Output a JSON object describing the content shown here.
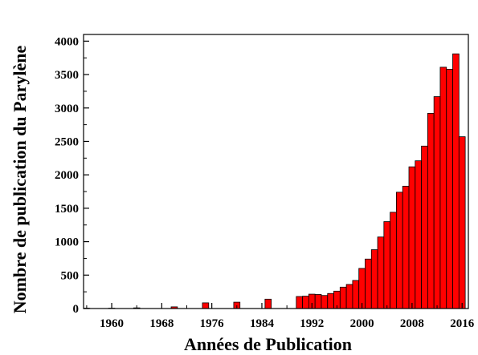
{
  "chart_data": {
    "type": "bar",
    "title": "",
    "xlabel": "Années de Publication",
    "ylabel": "Nombre de publication du Parylène",
    "xlim": [
      1955.5,
      2017
    ],
    "ylim": [
      0,
      4100
    ],
    "x_ticks": [
      1960,
      1968,
      1976,
      1984,
      1992,
      2000,
      2008,
      2016
    ],
    "y_ticks": [
      0,
      500,
      1000,
      1500,
      2000,
      2500,
      3000,
      3500,
      4000
    ],
    "x_tick_labels": [
      "1960",
      "1968",
      "1976",
      "1984",
      "1992",
      "2000",
      "2008",
      "2016"
    ],
    "y_tick_labels": [
      "0",
      "500",
      "1000",
      "1500",
      "2000",
      "2500",
      "3000",
      "3500",
      "4000"
    ],
    "grid": false,
    "bar_color": "#ff0000",
    "bar_edge_color": "#000000",
    "series": [
      {
        "x": [
          1956,
          1960,
          1964,
          1970,
          1975,
          1980,
          1985,
          1990,
          1991,
          1992,
          1993,
          1994,
          1995,
          1996,
          1997,
          1998,
          1999,
          2000,
          2001,
          2002,
          2003,
          2004,
          2005,
          2006,
          2007,
          2008,
          2009,
          2010,
          2011,
          2012,
          2013,
          2014,
          2015,
          2016
        ],
        "values": [
          5,
          5,
          10,
          25,
          85,
          95,
          140,
          180,
          185,
          215,
          210,
          195,
          225,
          260,
          320,
          360,
          420,
          600,
          740,
          880,
          1070,
          1300,
          1440,
          1740,
          1830,
          2120,
          2210,
          2430,
          2920,
          3170,
          3610,
          3580,
          3810,
          2570
        ]
      }
    ]
  }
}
